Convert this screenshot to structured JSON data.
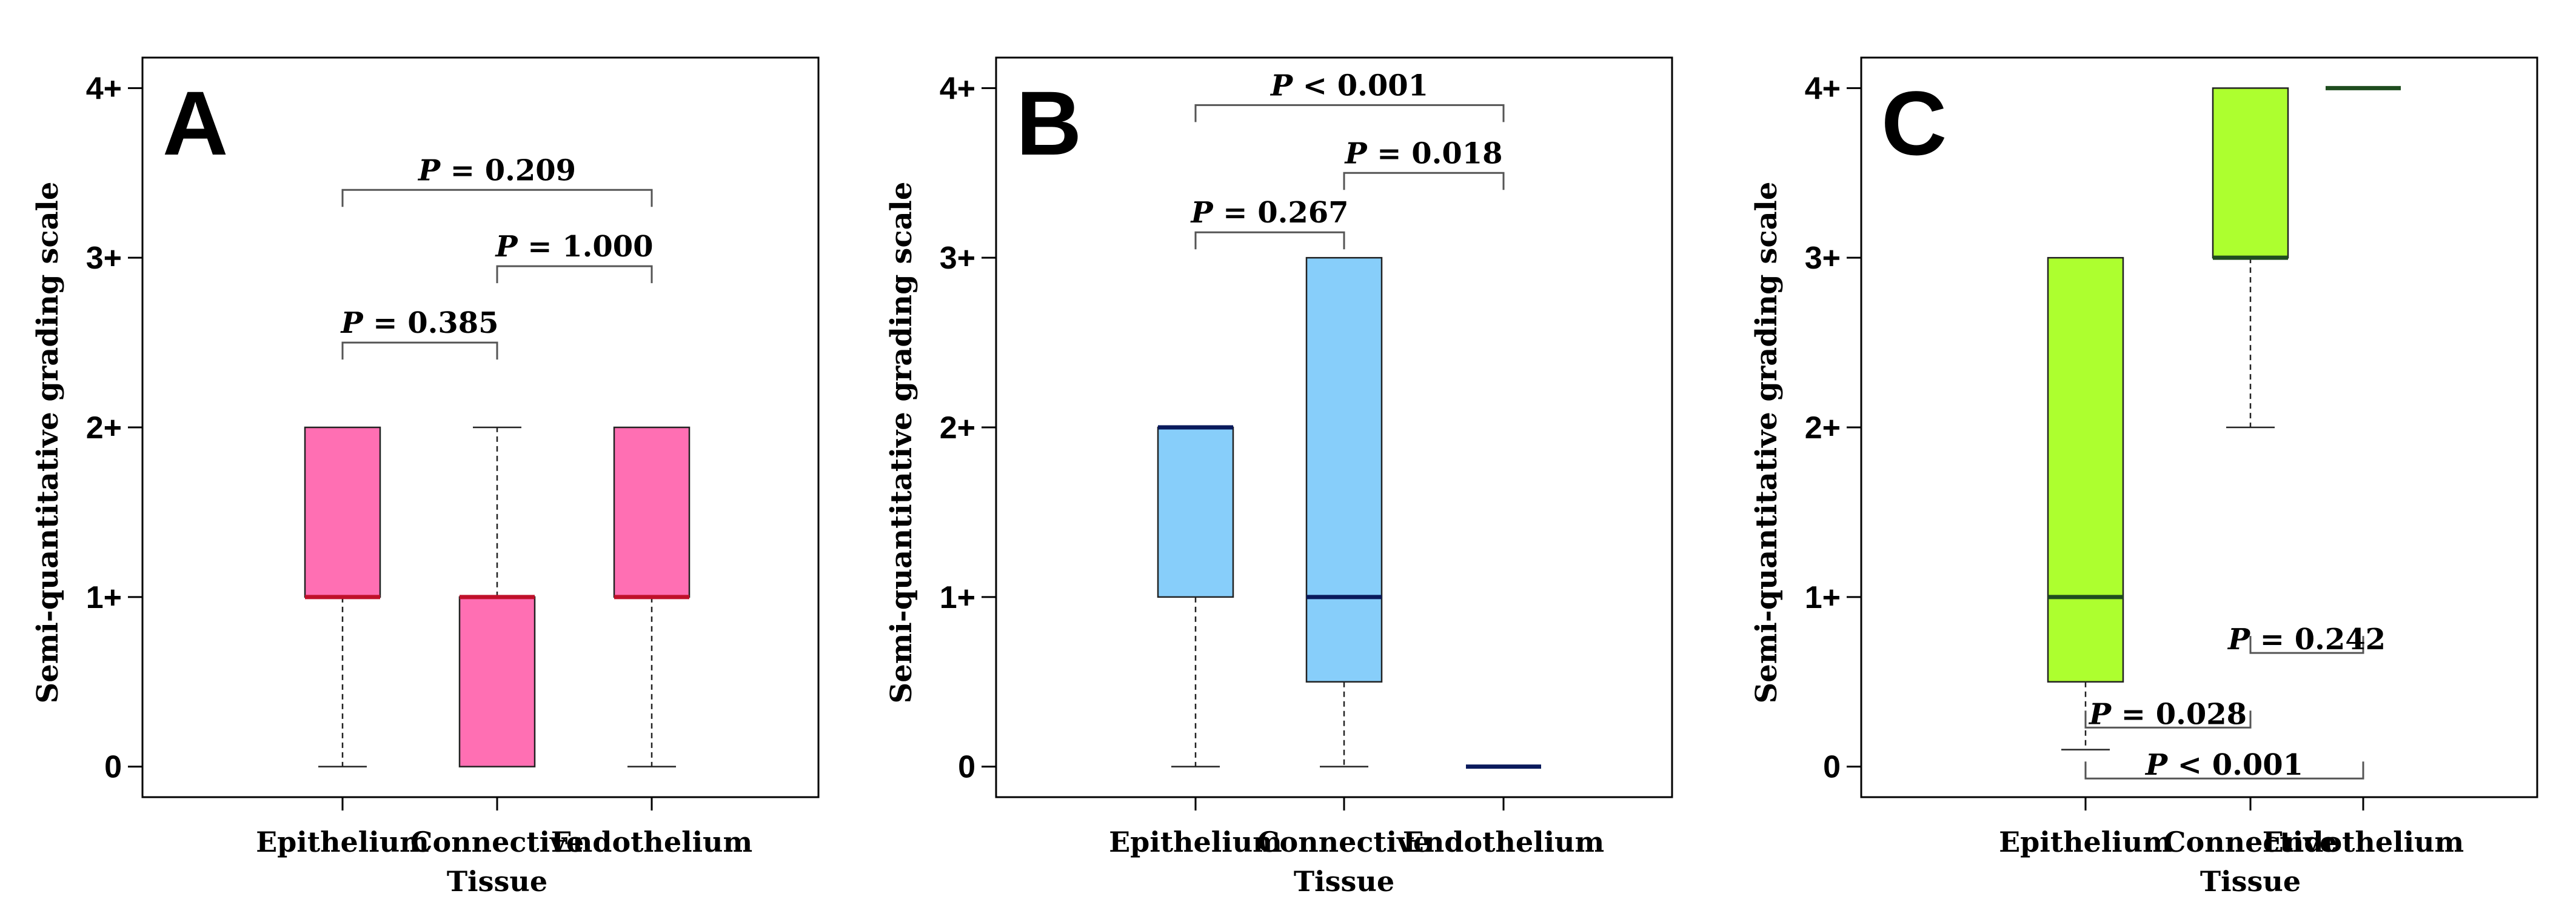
{
  "chart_data": [
    {
      "type": "box",
      "panel_label": "A",
      "ylabel": "Semi-quantitative grading scale",
      "xlabel": "",
      "ylim": [
        -0.18,
        4.18
      ],
      "yticks": [
        {
          "value": 0,
          "label": "0"
        },
        {
          "value": 1,
          "label": "1+"
        },
        {
          "value": 2,
          "label": "2+"
        },
        {
          "value": 3,
          "label": "3+"
        },
        {
          "value": 4,
          "label": "4+"
        }
      ],
      "categories": [
        {
          "label": "Epithelium",
          "label_line2": ""
        },
        {
          "label": "Connective",
          "label_line2": "Tissue"
        },
        {
          "label": "Endothelium",
          "label_line2": ""
        }
      ],
      "box_color": "#ff6fb3",
      "median_color": "#c0102a",
      "boxes": [
        {
          "whisker_low": 0,
          "q1": 1,
          "median": 1,
          "q3": 2,
          "whisker_high": 2
        },
        {
          "whisker_low": 0,
          "q1": 0,
          "median": 1,
          "q3": 1,
          "whisker_high": 2
        },
        {
          "whisker_low": 0,
          "q1": 1,
          "median": 1,
          "q3": 2,
          "whisker_high": 2
        }
      ],
      "comparisons": [
        {
          "from": 0,
          "to": 1,
          "y": 2.5,
          "orientation": "down",
          "p_symbol": "P",
          "p_text": " = 0.385"
        },
        {
          "from": 1,
          "to": 2,
          "y": 2.95,
          "orientation": "down",
          "p_symbol": "P",
          "p_text": " = 1.000"
        },
        {
          "from": 0,
          "to": 2,
          "y": 3.4,
          "orientation": "down",
          "p_symbol": "P",
          "p_text": " = 0.209"
        }
      ]
    },
    {
      "type": "box",
      "panel_label": "B",
      "ylabel": "Semi-quantitative grading scale",
      "xlabel": "",
      "ylim": [
        -0.18,
        4.18
      ],
      "yticks": [
        {
          "value": 0,
          "label": "0"
        },
        {
          "value": 1,
          "label": "1+"
        },
        {
          "value": 2,
          "label": "2+"
        },
        {
          "value": 3,
          "label": "3+"
        },
        {
          "value": 4,
          "label": "4+"
        }
      ],
      "categories": [
        {
          "label": "Epithelium",
          "label_line2": ""
        },
        {
          "label": "Connective",
          "label_line2": "Tissue"
        },
        {
          "label": "Endothelium",
          "label_line2": ""
        }
      ],
      "box_color": "#87cefa",
      "median_color": "#0a1a5c",
      "boxes": [
        {
          "whisker_low": 0,
          "q1": 1,
          "median": 2,
          "q3": 2,
          "whisker_high": 2
        },
        {
          "whisker_low": 0,
          "q1": 0.5,
          "median": 1,
          "q3": 3,
          "whisker_high": 3
        },
        {
          "whisker_low": 0,
          "q1": 0,
          "median": 0,
          "q3": 0,
          "whisker_high": 0
        }
      ],
      "comparisons": [
        {
          "from": 0,
          "to": 1,
          "y": 3.15,
          "orientation": "down",
          "p_symbol": "P",
          "p_text": " = 0.267"
        },
        {
          "from": 1,
          "to": 2,
          "y": 3.5,
          "orientation": "down",
          "p_symbol": "P",
          "p_text": " = 0.018"
        },
        {
          "from": 0,
          "to": 2,
          "y": 3.9,
          "orientation": "down",
          "p_symbol": "P",
          "p_text": " < 0.001"
        }
      ]
    },
    {
      "type": "box",
      "panel_label": "C",
      "ylabel": "Semi-quantitative grading scale",
      "xlabel": "",
      "ylim": [
        -0.18,
        4.18
      ],
      "yticks": [
        {
          "value": 0,
          "label": "0"
        },
        {
          "value": 1,
          "label": "1+"
        },
        {
          "value": 2,
          "label": "2+"
        },
        {
          "value": 3,
          "label": "3+"
        },
        {
          "value": 4,
          "label": "4+"
        }
      ],
      "categories": [
        {
          "label": "Epithelium",
          "label_line2": ""
        },
        {
          "label": "Connective",
          "label_line2": "Tissue"
        },
        {
          "label": "Endothelium",
          "label_line2": ""
        }
      ],
      "box_color": "#adff2f",
      "median_color": "#1f4d1f",
      "boxes": [
        {
          "whisker_low": 0.1,
          "q1": 0.5,
          "median": 1,
          "q3": 3,
          "whisker_high": 3
        },
        {
          "whisker_low": 2,
          "q1": 3,
          "median": 3,
          "q3": 4,
          "whisker_high": 4
        },
        {
          "whisker_low": 4,
          "q1": 4,
          "median": 4,
          "q3": 4,
          "whisker_high": 4
        }
      ],
      "comparisons": [
        {
          "from": 0,
          "to": 1,
          "y": 0.23,
          "orientation": "up",
          "p_symbol": "P",
          "p_text": " = 0.028"
        },
        {
          "from": 1,
          "to": 2,
          "y": 0.67,
          "orientation": "up",
          "p_symbol": "P",
          "p_text": " = 0.242"
        },
        {
          "from": 0,
          "to": 2,
          "y": -0.07,
          "orientation": "up",
          "p_symbol": "P",
          "p_text": " < 0.001"
        }
      ]
    }
  ]
}
